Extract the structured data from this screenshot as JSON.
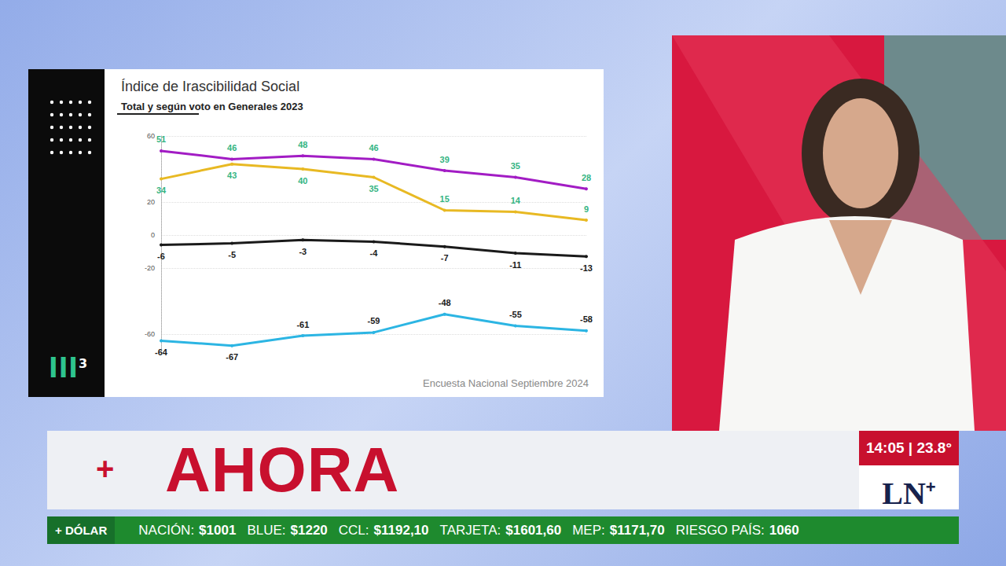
{
  "chart_data": {
    "type": "line",
    "title": "Índice de Irascibilidad Social",
    "subtitle": "Total y según voto en Generales 2023",
    "source": "Encuesta Nacional Septiembre 2024",
    "categories": [
      null,
      null,
      null,
      null,
      null,
      null,
      null
    ],
    "series": [
      {
        "color": "#a21cc4",
        "values": [
          51,
          46,
          48,
          46,
          39,
          35,
          28
        ]
      },
      {
        "color": "#e8b923",
        "values": [
          34,
          43,
          40,
          35,
          15,
          14,
          9
        ]
      },
      {
        "color": "#1a1a1a",
        "values": [
          -6,
          -5,
          -3,
          -4,
          -7,
          -11,
          -13
        ]
      },
      {
        "color": "#2cb5e3",
        "values": [
          -64,
          -67,
          -61,
          -59,
          -48,
          -55,
          -58
        ]
      }
    ],
    "ylim": [
      -70,
      60
    ],
    "yticks": [
      -60,
      -20,
      0,
      20,
      60
    ],
    "grid": true,
    "data_labels": true,
    "tick_labels": "y",
    "marker": "circle"
  },
  "screen": {
    "logo": {
      "text": "lll",
      "mark": "3"
    },
    "banner": {
      "symbol": "+",
      "headline": "AHORA"
    },
    "clock": "14:05 | 23.8°",
    "channel": {
      "name": "LN",
      "mark": "+"
    },
    "ticker": {
      "label": "+ DÓLAR",
      "items": [
        {
          "name": "NACIÓN:",
          "value": "$1001"
        },
        {
          "name": "BLUE:",
          "value": "$1220"
        },
        {
          "name": "CCL:",
          "value": "$1192,10"
        },
        {
          "name": "TARJETA:",
          "value": "$1601,60"
        },
        {
          "name": "MEP:",
          "value": "$1171,70"
        },
        {
          "name": "RIESGO PAÍS:",
          "value": "1060"
        }
      ]
    }
  }
}
